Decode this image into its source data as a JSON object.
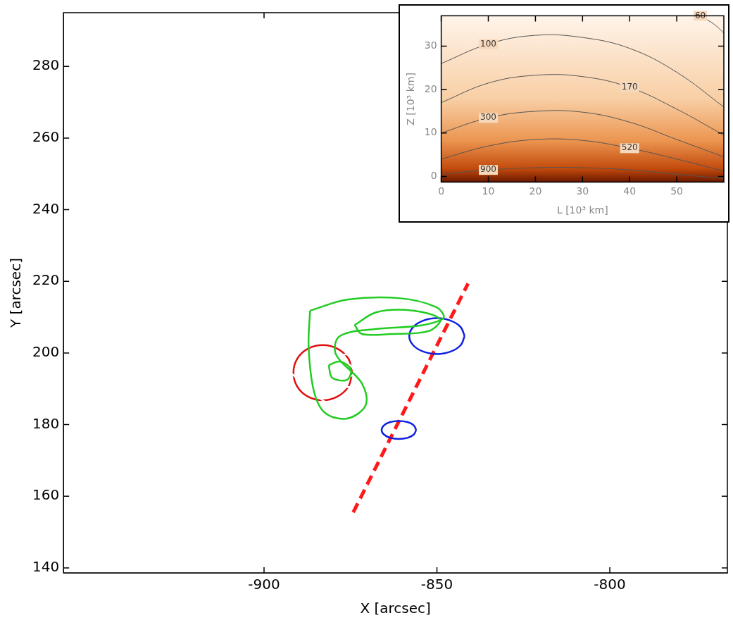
{
  "chart_data": [
    {
      "type": "line",
      "x_label": "X [arcsec]",
      "y_label": "Y [arcsec]",
      "xlim": [
        -958,
        -766
      ],
      "ylim": [
        138.6,
        295
      ],
      "xticks": [
        -900,
        -850,
        -800
      ],
      "yticks": [
        140,
        160,
        180,
        200,
        220,
        240,
        260,
        280
      ],
      "grid": false,
      "series": [
        {
          "color": "#22cc22",
          "line_style": "solid",
          "values": [
            [
              -886.7,
              211.8
            ],
            [
              -876.0,
              214.9
            ],
            [
              -860.9,
              215.3
            ],
            [
              -850.2,
              212.8
            ],
            [
              -848.1,
              209.8
            ],
            [
              -854.5,
              207.7
            ],
            [
              -867.4,
              206.7
            ],
            [
              -878.1,
              204.7
            ],
            [
              -879.2,
              199.6
            ],
            [
              -871.7,
              191.5
            ],
            [
              -870.6,
              185.4
            ],
            [
              -876.0,
              181.7
            ],
            [
              -882.4,
              183.3
            ],
            [
              -885.6,
              189.4
            ],
            [
              -887.1,
              201.7
            ]
          ]
        },
        {
          "color": "#22cc22",
          "line_style": "solid",
          "values": [
            [
              -873.8,
              207.8
            ],
            [
              -867.4,
              211.4
            ],
            [
              -856.7,
              211.8
            ],
            [
              -849.1,
              209.4
            ],
            [
              -852.4,
              206.1
            ],
            [
              -863.1,
              205.3
            ],
            [
              -871.7,
              205.3
            ]
          ]
        },
        {
          "color": "#22cc22",
          "line_style": "solid",
          "values": [
            [
              -881.3,
              196.6
            ],
            [
              -878.1,
              197.6
            ],
            [
              -874.9,
              195.5
            ],
            [
              -876.0,
              192.5
            ],
            [
              -880.3,
              193.1
            ]
          ]
        },
        {
          "color": "#ffffff",
          "line_style": "solid",
          "values": [
            [
              -896.4,
              201.7
            ],
            [
              -891.0,
              204.1
            ],
            [
              -880.3,
              203.3
            ],
            [
              -867.4,
              201.7
            ],
            [
              -860.9,
              199.6
            ],
            [
              -863.1,
              193.5
            ],
            [
              -865.2,
              188.4
            ],
            [
              -868.5,
              182.9
            ],
            [
              -876.0,
              184.4
            ],
            [
              -882.4,
              186.4
            ],
            [
              -888.8,
              191.5
            ],
            [
              -895.3,
              197.6
            ]
          ]
        },
        {
          "color": "#ffffff",
          "line_style": "solid",
          "values": [
            [
              -882.4,
              197.6
            ],
            [
              -876.0,
              199.6
            ],
            [
              -869.5,
              197.6
            ],
            [
              -870.6,
              192.5
            ],
            [
              -876.0,
              190.5
            ],
            [
              -881.3,
              193.5
            ]
          ]
        },
        {
          "color": "#ffffff",
          "line_style": "solid",
          "values": [
            [
              -879.2,
              196.6
            ],
            [
              -876.0,
              197.2
            ],
            [
              -873.8,
              194.5
            ],
            [
              -877.0,
              193.1
            ]
          ]
        },
        {
          "color": "#e01010",
          "line_style": "solid",
          "values": [
            [
              -874.5,
              194.5
            ],
            [
              -875.6,
              198.4
            ],
            [
              -878.8,
              201.2
            ],
            [
              -883.0,
              202.2
            ],
            [
              -887.3,
              201.2
            ],
            [
              -890.4,
              198.4
            ],
            [
              -891.5,
              194.5
            ],
            [
              -890.4,
              190.6
            ],
            [
              -887.3,
              187.8
            ],
            [
              -883.0,
              186.8
            ],
            [
              -878.8,
              187.8
            ],
            [
              -875.6,
              190.6
            ]
          ]
        },
        {
          "color": "#1020e0",
          "line_style": "solid",
          "values": [
            [
              -842.0,
              204.7
            ],
            [
              -843.1,
              207.2
            ],
            [
              -846.0,
              209.0
            ],
            [
              -850.0,
              209.7
            ],
            [
              -854.0,
              209.0
            ],
            [
              -856.9,
              207.2
            ],
            [
              -858.0,
              204.7
            ],
            [
              -856.9,
              202.2
            ],
            [
              -854.0,
              200.4
            ],
            [
              -850.0,
              199.7
            ],
            [
              -846.0,
              200.4
            ],
            [
              -843.1,
              202.2
            ]
          ]
        },
        {
          "color": "#1020e0",
          "line_style": "solid",
          "values": [
            [
              -856.0,
              178.5
            ],
            [
              -856.7,
              179.8
            ],
            [
              -858.5,
              180.7
            ],
            [
              -861.0,
              181.0
            ],
            [
              -863.5,
              180.7
            ],
            [
              -865.3,
              179.8
            ],
            [
              -866.0,
              178.5
            ],
            [
              -865.3,
              177.2
            ],
            [
              -863.5,
              176.3
            ],
            [
              -861.0,
              176.0
            ],
            [
              -858.5,
              176.3
            ],
            [
              -856.7,
              177.2
            ]
          ]
        },
        {
          "color": "#ff1a1a",
          "line_style": "dashed",
          "values": [
            [
              -874.2,
              155.5
            ],
            [
              -841.0,
              219.4
            ]
          ]
        }
      ]
    },
    {
      "type": "contour",
      "x_label": "L [10³ km]",
      "y_label": "Z [10³ km]",
      "xlim": [
        0,
        60
      ],
      "ylim": [
        -1.3,
        37
      ],
      "xticks": [
        0,
        10,
        20,
        30,
        40,
        50
      ],
      "yticks": [
        0,
        10,
        20,
        30
      ],
      "grid": false,
      "contours": [
        {
          "level": 900,
          "x": [
            0,
            10,
            20,
            30,
            40,
            50,
            60
          ],
          "y": [
            0.5,
            1.5,
            2.0,
            2.0,
            1.5,
            0.5,
            -0.5
          ]
        },
        {
          "level": 520,
          "x": [
            0,
            10,
            20,
            30,
            40,
            50,
            60
          ],
          "y": [
            4.0,
            7.0,
            8.5,
            8.3,
            6.5,
            4.0,
            1.2
          ]
        },
        {
          "level": 300,
          "x": [
            0,
            10,
            20,
            30,
            40,
            50,
            60
          ],
          "y": [
            10.0,
            13.5,
            15.0,
            14.8,
            12.5,
            8.5,
            4.5
          ]
        },
        {
          "level": 170,
          "x": [
            0,
            10,
            20,
            30,
            40,
            50,
            60
          ],
          "y": [
            17.0,
            21.5,
            23.3,
            23.0,
            20.5,
            15.5,
            9.5
          ]
        },
        {
          "level": 100,
          "x": [
            0,
            10,
            20,
            30,
            40,
            50,
            60
          ],
          "y": [
            26.0,
            30.5,
            32.5,
            32.0,
            29.5,
            24.0,
            16.0
          ]
        },
        {
          "level": 60,
          "x": [
            55,
            58,
            60
          ],
          "y": [
            37,
            35,
            33
          ]
        }
      ]
    }
  ]
}
